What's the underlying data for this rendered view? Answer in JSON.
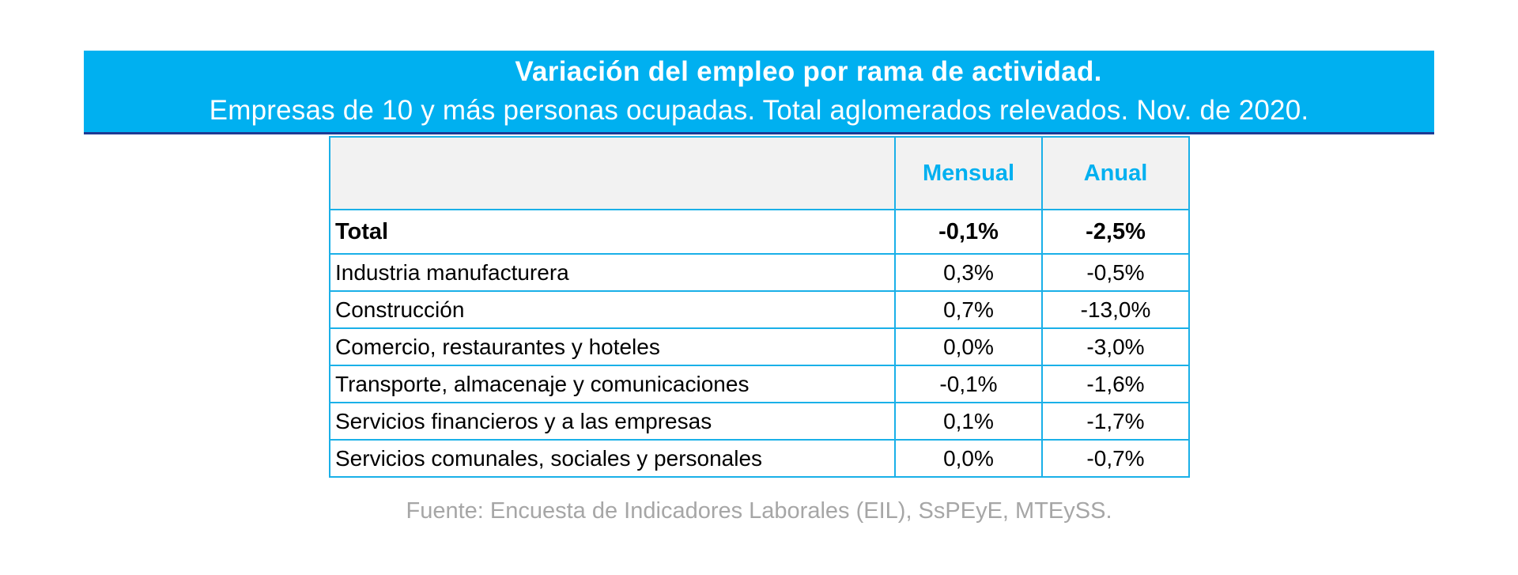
{
  "header": {
    "title": "Variación del empleo por rama de actividad.",
    "subtitle": "Empresas de 10 y más personas ocupadas. Total aglomerados relevados. Nov. de 2020."
  },
  "table": {
    "columns": [
      "",
      "Mensual",
      "Anual"
    ],
    "total": {
      "label": "Total",
      "mensual": "-0,1%",
      "anual": "-2,5%"
    },
    "rows": [
      {
        "label": "Industria manufacturera",
        "mensual": "0,3%",
        "anual": "-0,5%"
      },
      {
        "label": "Construcción",
        "mensual": "0,7%",
        "anual": "-13,0%"
      },
      {
        "label": "Comercio, restaurantes y hoteles",
        "mensual": "0,0%",
        "anual": "-3,0%"
      },
      {
        "label": "Transporte, almacenaje y comunicaciones",
        "mensual": "-0,1%",
        "anual": "-1,6%"
      },
      {
        "label": "Servicios financieros y a las empresas",
        "mensual": "0,1%",
        "anual": "-1,7%"
      },
      {
        "label": "Servicios comunales, sociales y personales",
        "mensual": "0,0%",
        "anual": "-0,7%"
      }
    ]
  },
  "source": "Fuente: Encuesta de Indicadores Laborales (EIL), SsPEyE, MTEySS.",
  "colors": {
    "banner": "#00b0f0",
    "banner_border": "#1f3a93",
    "grid": "#1ab0e8",
    "header_text": "#00b0f0",
    "source_text": "#a6a6a6"
  },
  "chart_data": {
    "type": "table",
    "title": "Variación del empleo por rama de actividad.",
    "subtitle": "Empresas de 10 y más personas ocupadas. Total aglomerados relevados. Nov. de 2020.",
    "columns": [
      "Mensual",
      "Anual"
    ],
    "categories": [
      "Total",
      "Industria manufacturera",
      "Construcción",
      "Comercio, restaurantes y hoteles",
      "Transporte, almacenaje y comunicaciones",
      "Servicios financieros y a las empresas",
      "Servicios comunales, sociales y personales"
    ],
    "series": [
      {
        "name": "Mensual",
        "values": [
          -0.1,
          0.3,
          0.7,
          0.0,
          -0.1,
          0.1,
          0.0
        ]
      },
      {
        "name": "Anual",
        "values": [
          -2.5,
          -0.5,
          -13.0,
          -3.0,
          -1.6,
          -1.7,
          -0.7
        ]
      }
    ]
  }
}
